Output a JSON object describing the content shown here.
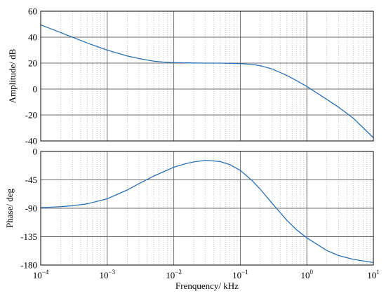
{
  "chart_data": [
    {
      "type": "line",
      "xscale": "log",
      "xlim": [
        0.0001,
        10
      ],
      "ylim": [
        -40,
        60
      ],
      "ylabel": "Amplitude/ dB",
      "xlabel": "",
      "grid": true,
      "line_color": "#2b70b6",
      "y_ticks": [
        60,
        40,
        20,
        0,
        -20,
        -40
      ],
      "x": [
        0.0001,
        0.0002,
        0.0003,
        0.0005,
        0.001,
        0.002,
        0.003,
        0.005,
        0.007,
        0.01,
        0.02,
        0.03,
        0.05,
        0.1,
        0.15,
        0.2,
        0.3,
        0.5,
        0.7,
        1,
        2,
        3,
        5,
        10
      ],
      "y": [
        49.5,
        43.5,
        40,
        35.5,
        30,
        25.5,
        23.5,
        21.5,
        20.8,
        20.4,
        20.1,
        20,
        20,
        19.6,
        19.0,
        18.0,
        15.5,
        10.5,
        6.5,
        2,
        -8,
        -14,
        -22.5,
        -37.5
      ]
    },
    {
      "type": "line",
      "xscale": "log",
      "xlim": [
        0.0001,
        10
      ],
      "ylim": [
        -180,
        0
      ],
      "ylabel": "Phase/ deg",
      "xlabel": "Frenquency/ kHz",
      "grid": true,
      "line_color": "#2b70b6",
      "y_ticks": [
        0,
        -45,
        -90,
        -135,
        -180
      ],
      "x_ticks": [
        {
          "value": 0.0001,
          "base": "10",
          "exp": "−4"
        },
        {
          "value": 0.001,
          "base": "10",
          "exp": "−3"
        },
        {
          "value": 0.01,
          "base": "10",
          "exp": "−2"
        },
        {
          "value": 0.1,
          "base": "10",
          "exp": "−1"
        },
        {
          "value": 1,
          "base": "10",
          "exp": "0"
        },
        {
          "value": 10,
          "base": "10",
          "exp": "1"
        }
      ],
      "x": [
        0.0001,
        0.0002,
        0.0003,
        0.0005,
        0.001,
        0.002,
        0.003,
        0.005,
        0.01,
        0.015,
        0.02,
        0.03,
        0.05,
        0.07,
        0.1,
        0.15,
        0.2,
        0.3,
        0.5,
        0.7,
        1,
        2,
        3,
        5,
        10
      ],
      "y": [
        -89,
        -87.5,
        -86,
        -83,
        -75,
        -61,
        -51,
        -39,
        -25,
        -19.5,
        -16.5,
        -14,
        -16,
        -21,
        -30,
        -46,
        -60,
        -82,
        -109,
        -124,
        -137,
        -157,
        -165,
        -171,
        -176
      ]
    }
  ]
}
